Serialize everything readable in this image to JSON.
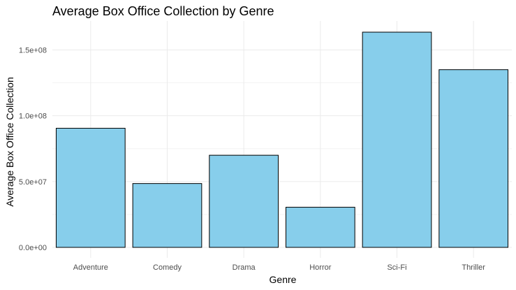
{
  "chart_data": {
    "type": "bar",
    "title": "Average Box Office Collection by Genre",
    "xlabel": "Genre",
    "ylabel": "Average Box Office Collection",
    "categories": [
      "Adventure",
      "Comedy",
      "Drama",
      "Horror",
      "Sci-Fi",
      "Thriller"
    ],
    "values": [
      90500000,
      48500000,
      70000000,
      30500000,
      163500000,
      135000000
    ],
    "ylim": [
      0,
      172000000
    ],
    "yticks": [
      0,
      50000000,
      100000000,
      150000000
    ],
    "ytick_labels": [
      "0.0e+00",
      "5.0e+07",
      "1.0e+08",
      "1.5e+08"
    ],
    "bar_color": "#87CEEB",
    "bar_outline": "#000000",
    "grid": true,
    "legend": "none"
  }
}
